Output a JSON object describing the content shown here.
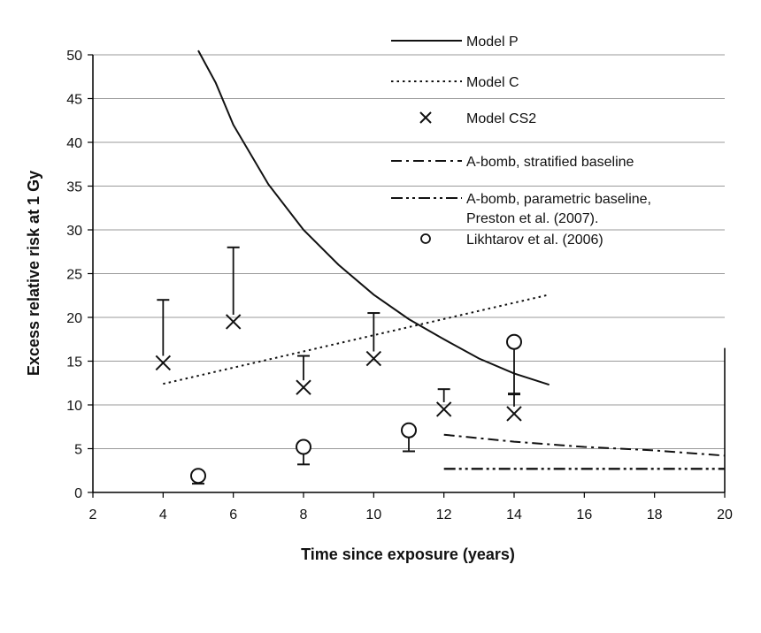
{
  "chart_data": {
    "type": "line",
    "xlabel": "Time since exposure (years)",
    "ylabel": "Excess relative risk at 1 Gy",
    "xlim": [
      2,
      20
    ],
    "ylim": [
      0,
      50
    ],
    "xticks": [
      2,
      4,
      6,
      8,
      10,
      12,
      14,
      16,
      18,
      20
    ],
    "yticks": [
      0,
      5,
      10,
      15,
      20,
      25,
      30,
      35,
      40,
      45,
      50
    ],
    "grid": "horizontal",
    "legend_position": "top-right",
    "series": [
      {
        "name": "Model P",
        "style": "solid",
        "points": [
          [
            5.0,
            50.5
          ],
          [
            5.5,
            46.8
          ],
          [
            6.0,
            42.0
          ],
          [
            7.0,
            35.2
          ],
          [
            8.0,
            30.0
          ],
          [
            9.0,
            26.0
          ],
          [
            10.0,
            22.6
          ],
          [
            11.0,
            19.8
          ],
          [
            12.0,
            17.5
          ],
          [
            13.0,
            15.3
          ],
          [
            14.0,
            13.6
          ],
          [
            15.0,
            12.3
          ]
        ]
      },
      {
        "name": "Model C",
        "style": "dotted",
        "points": [
          [
            4.0,
            12.4
          ],
          [
            15.0,
            22.6
          ]
        ]
      },
      {
        "name": "Model CS2",
        "style": "cross",
        "points": [
          {
            "x": 4,
            "y": 14.8,
            "upper": 22.0
          },
          {
            "x": 6,
            "y": 19.5,
            "upper": 28.0
          },
          {
            "x": 8,
            "y": 12.0,
            "upper": 15.6
          },
          {
            "x": 10,
            "y": 15.3,
            "upper": 20.5
          },
          {
            "x": 12,
            "y": 9.5,
            "upper": 11.8
          },
          {
            "x": 14,
            "y": 9.0,
            "upper": 11.2
          }
        ]
      },
      {
        "name": "A-bomb, stratified baseline",
        "style": "dash-dot",
        "points": [
          [
            12.0,
            6.6
          ],
          [
            14.0,
            5.8
          ],
          [
            16.0,
            5.2
          ],
          [
            18.0,
            4.8
          ],
          [
            20.0,
            4.2
          ]
        ]
      },
      {
        "name": "A-bomb, parametric baseline,",
        "name_line2": "Preston et al. (2007).",
        "style": "dash-dot-dot",
        "points": [
          [
            12.0,
            2.7
          ],
          [
            20.0,
            2.7
          ]
        ]
      },
      {
        "name": "Likhtarov et al. (2006)",
        "style": "circle",
        "points": [
          {
            "x": 5,
            "y": 1.9,
            "lower": 1.0
          },
          {
            "x": 8,
            "y": 5.2,
            "lower": 3.2
          },
          {
            "x": 11,
            "y": 7.1,
            "lower": 4.7
          },
          {
            "x": 14,
            "y": 17.2,
            "lower": 11.3
          }
        ]
      }
    ]
  }
}
